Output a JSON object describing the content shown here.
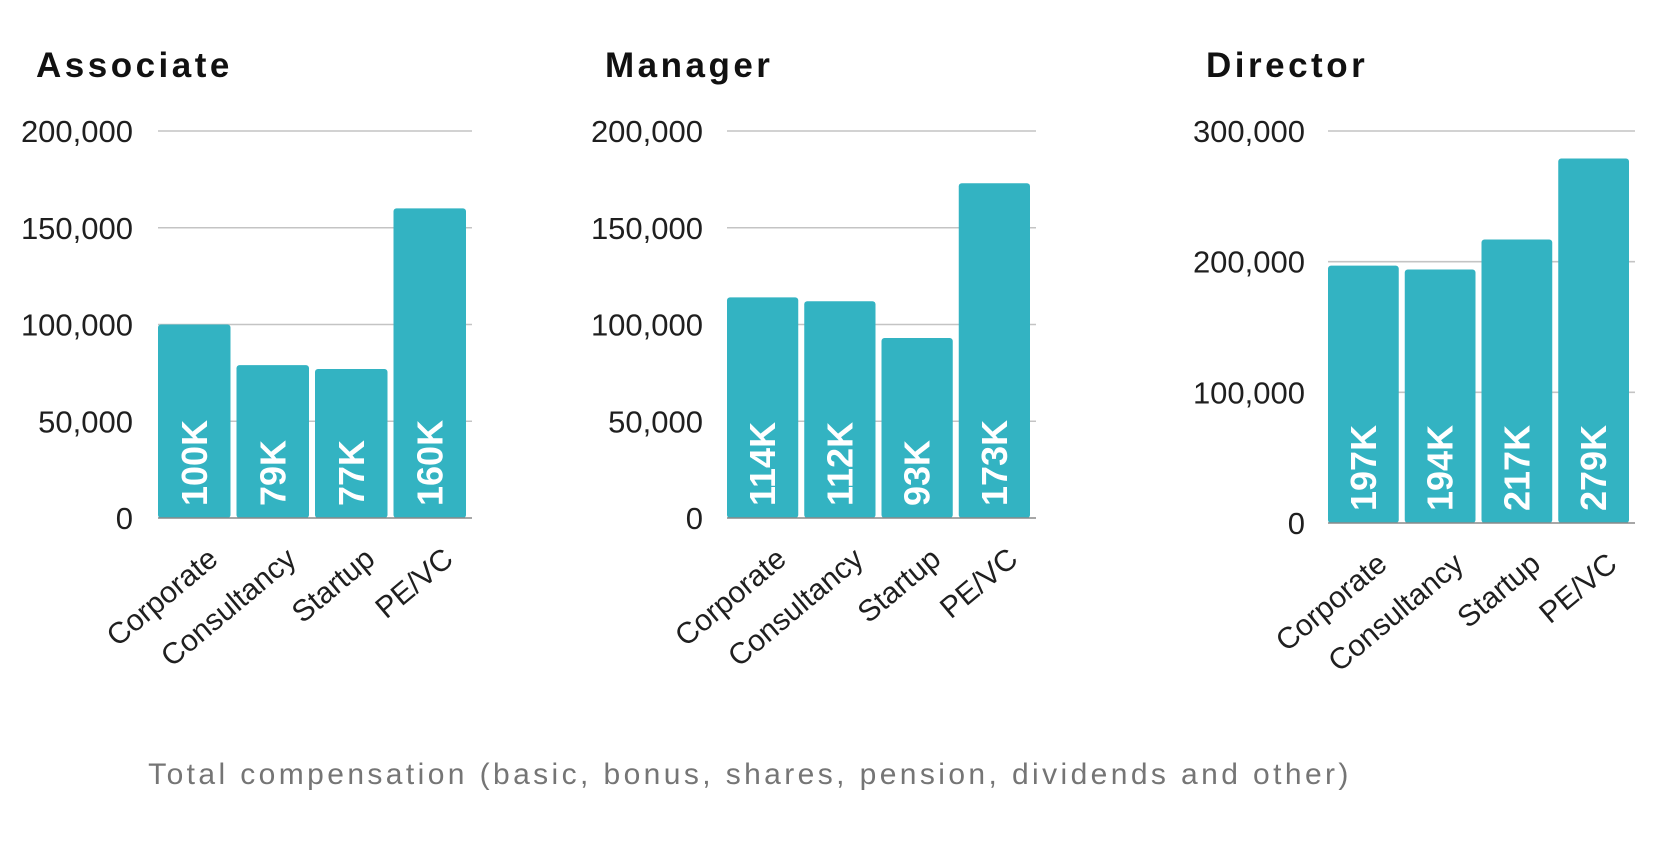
{
  "caption": "Total compensation (basic, bonus, shares, pension, dividends and other)",
  "colors": {
    "bar": "#33b3c2",
    "bar_label": "#ffffff",
    "grid": "#c4c4c4"
  },
  "chart_data": [
    {
      "type": "bar",
      "title": "Associate",
      "categories": [
        "Corporate",
        "Consultancy",
        "Startup",
        "PE/VC"
      ],
      "values": [
        100000,
        79000,
        77000,
        160000
      ],
      "data_labels": [
        "100K",
        "79K",
        "77K",
        "160K"
      ],
      "yticks": [
        0,
        50000,
        100000,
        150000,
        200000
      ],
      "ytick_labels": [
        "0",
        "50,000",
        "100,000",
        "150,000",
        "200,000"
      ],
      "ylim": [
        0,
        200000
      ],
      "grid": true,
      "legend": "none"
    },
    {
      "type": "bar",
      "title": "Manager",
      "categories": [
        "Corporate",
        "Consultancy",
        "Startup",
        "PE/VC"
      ],
      "values": [
        114000,
        112000,
        93000,
        173000
      ],
      "data_labels": [
        "114K",
        "112K",
        "93K",
        "173K"
      ],
      "yticks": [
        0,
        50000,
        100000,
        150000,
        200000
      ],
      "ytick_labels": [
        "0",
        "50,000",
        "100,000",
        "150,000",
        "200,000"
      ],
      "ylim": [
        0,
        200000
      ],
      "grid": true,
      "legend": "none"
    },
    {
      "type": "bar",
      "title": "Director",
      "categories": [
        "Corporate",
        "Consultancy",
        "Startup",
        "PE/VC"
      ],
      "values": [
        197000,
        194000,
        217000,
        279000
      ],
      "data_labels": [
        "197K",
        "194K",
        "217K",
        "279K"
      ],
      "yticks": [
        0,
        100000,
        200000,
        300000
      ],
      "ytick_labels": [
        "0",
        "100,000",
        "200,000",
        "300,000"
      ],
      "ylim": [
        0,
        300000
      ],
      "grid": true,
      "legend": "none"
    }
  ]
}
